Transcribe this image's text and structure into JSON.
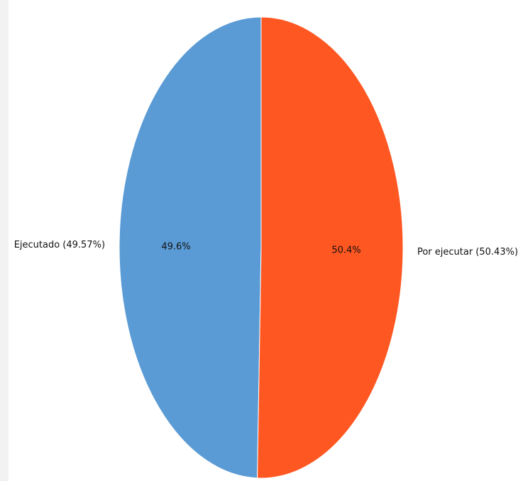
{
  "chart_data": {
    "type": "pie",
    "slices": [
      {
        "label": "Ejecutado (49.57%)",
        "value": 49.57,
        "pct_label": "49.6%",
        "color": "#5b9bd5"
      },
      {
        "label": "Por ejecutar (50.43%)",
        "value": 50.43,
        "pct_label": "50.4%",
        "color": "#ff5722"
      }
    ]
  }
}
